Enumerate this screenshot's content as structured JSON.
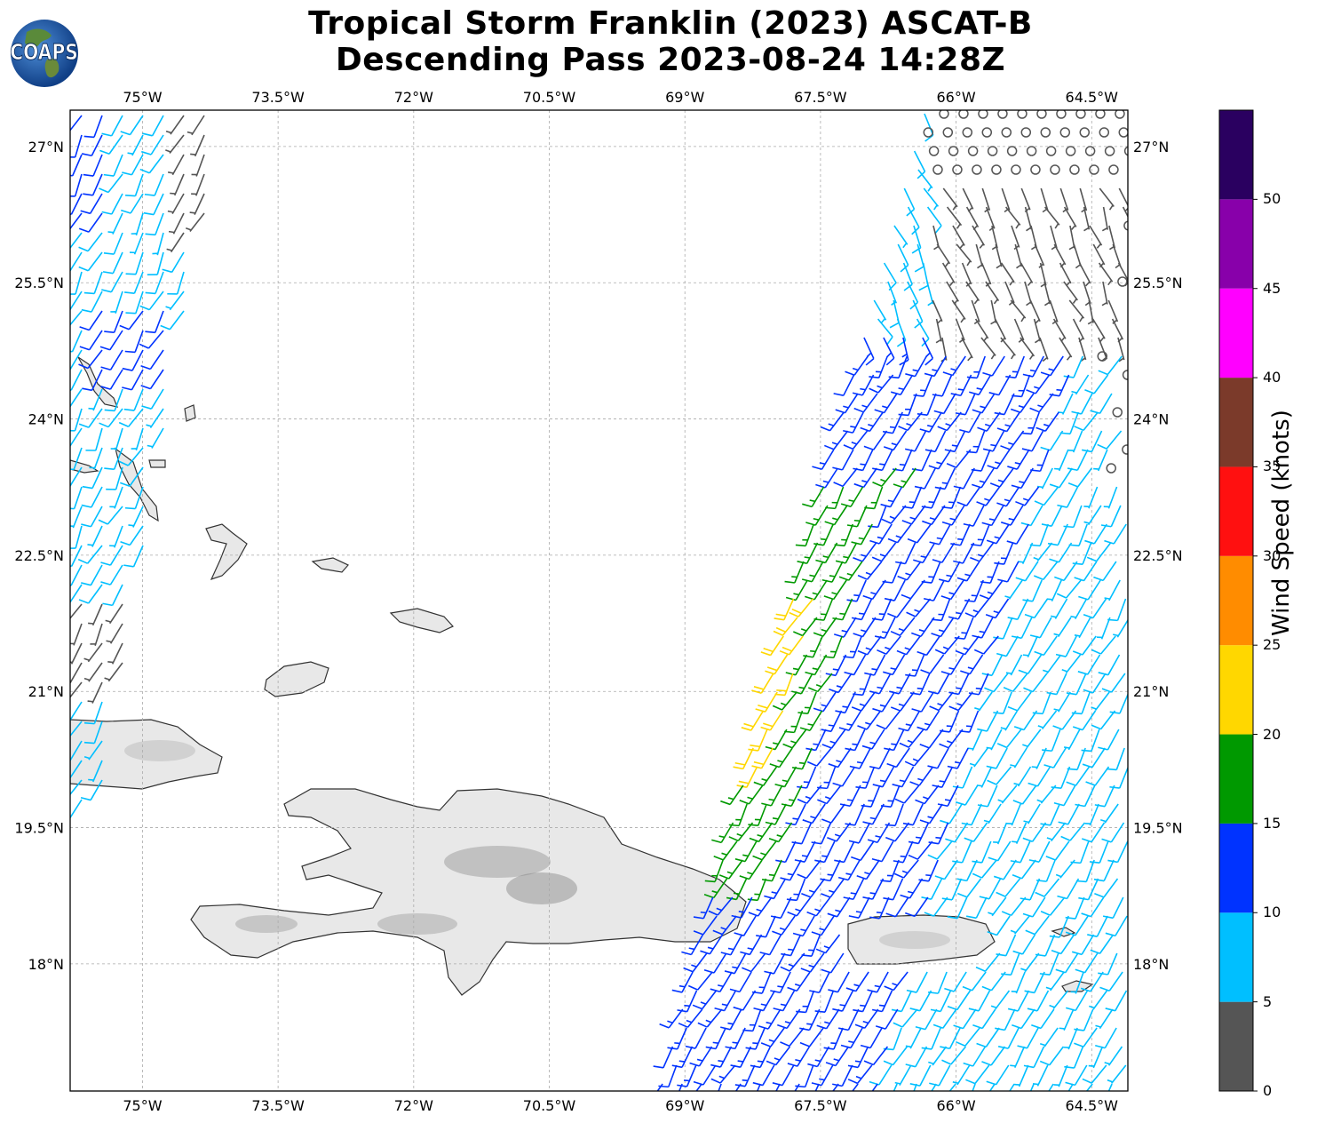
{
  "title": {
    "line1": "Tropical Storm Franklin (2023) ASCAT-B",
    "line2": "Descending Pass 2023-08-24 14:28Z"
  },
  "logo": {
    "text": "COAPS",
    "icon": "globe-logo-icon"
  },
  "axes": {
    "x_ticks": [
      "75°W",
      "73.5°W",
      "72°W",
      "70.5°W",
      "69°W",
      "67.5°W",
      "66°W",
      "64.5°W"
    ],
    "y_ticks": [
      "27°N",
      "25.5°N",
      "24°N",
      "22.5°N",
      "21°N",
      "19.5°N",
      "18°N"
    ],
    "lon_range": [
      -75.8,
      -64.1
    ],
    "lat_range": [
      16.6,
      27.4
    ],
    "grid": true
  },
  "colorbar": {
    "label": "Wind Speed (knots)",
    "ticks": [
      "0",
      "5",
      "10",
      "15",
      "20",
      "25",
      "30",
      "35",
      "40",
      "45",
      "50"
    ],
    "colors": [
      "#555555",
      "#00bfff",
      "#0033ff",
      "#009900",
      "#ffd700",
      "#ff8c00",
      "#ff1010",
      "#7b3a2a",
      "#ff00ff",
      "#8800aa",
      "#2a0060"
    ],
    "range": [
      0,
      55
    ]
  },
  "land_color": "#e8e8e8",
  "coast_color": "#333333"
}
